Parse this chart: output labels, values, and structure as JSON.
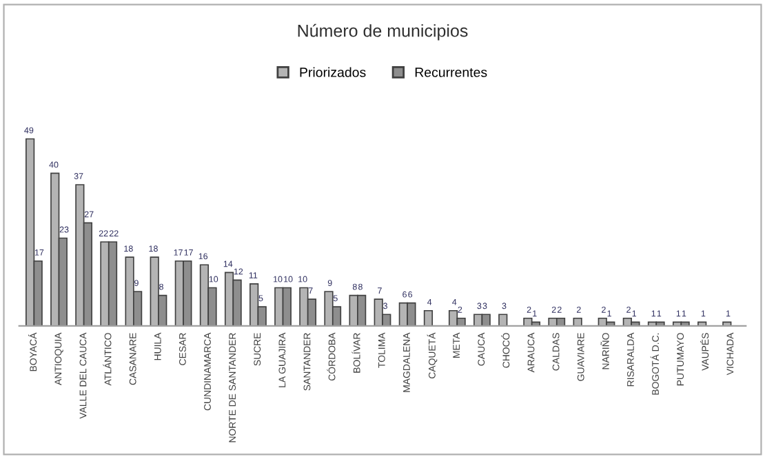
{
  "chart_data": {
    "type": "bar",
    "title": "Número de municipios",
    "legend": "top",
    "data_labels": true,
    "categories": [
      "BOYACÁ",
      "ANTIOQUIA",
      "VALLE DEL CAUCA",
      "ATLÁNTICO",
      "CASANARE",
      "HUILA",
      "CESAR",
      "CUNDINAMARCA",
      "NORTE DE SANTANDER",
      "SUCRE",
      "LA GUAJIRA",
      "SANTANDER",
      "CÓRDOBA",
      "BOLÍVAR",
      "TOLIMA",
      "MAGDALENA",
      "CAQUETÁ",
      "META",
      "CAUCA",
      "CHOCÓ",
      "ARAUCA",
      "CALDAS",
      "GUAVIARE",
      "NARIÑO",
      "RISARALDA",
      "BOGOTÁ D.C.",
      "PUTUMAYO",
      "VAUPÉS",
      "VICHADA"
    ],
    "series": [
      {
        "name": "Priorizados",
        "color": "#b4b4b4",
        "values": [
          49,
          40,
          37,
          22,
          18,
          18,
          17,
          16,
          14,
          11,
          10,
          10,
          9,
          8,
          7,
          6,
          4,
          4,
          3,
          3,
          2,
          2,
          2,
          2,
          2,
          1,
          1,
          1,
          1
        ]
      },
      {
        "name": "Recurrentes",
        "color": "#8e8e8e",
        "values": [
          17,
          23,
          27,
          22,
          9,
          8,
          17,
          10,
          12,
          5,
          10,
          7,
          5,
          8,
          3,
          6,
          null,
          2,
          3,
          null,
          1,
          2,
          null,
          1,
          1,
          1,
          1,
          null,
          null
        ]
      }
    ]
  }
}
